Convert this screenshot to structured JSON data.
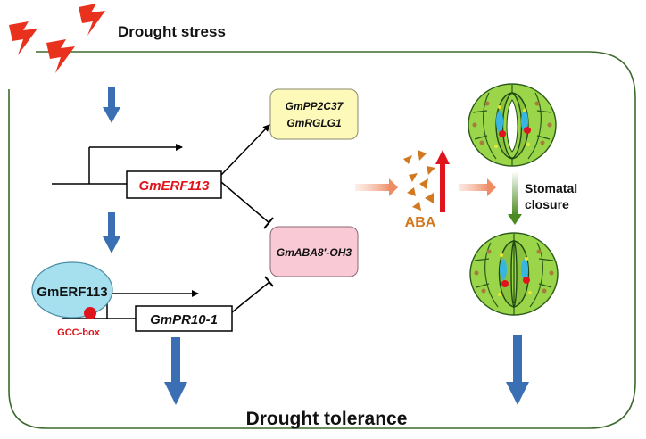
{
  "title_top": "Drought stress",
  "title_bottom": "Drought tolerance",
  "genes": {
    "erf": "GmERF113",
    "pr10": "GmPR10-1",
    "pp2c": "GmPP2C37",
    "rglg": "GmRGLG1",
    "aba8": "GmABA8′-OH3"
  },
  "protein": "GmERF113",
  "gcc_box": "GCC-box",
  "aba": "ABA",
  "stomatal": {
    "line1": "Stomatal",
    "line2": "closure"
  },
  "colors": {
    "frame": "#3c6a2c",
    "blue_arrow": "#3a6fb3",
    "red_text": "#e0141c",
    "yellow_box": "#fdf9b9",
    "pink_box": "#f9c9d6",
    "protein": "#a6e0ee",
    "aba": "#d2781f",
    "cell_green": "#9ad54a"
  }
}
